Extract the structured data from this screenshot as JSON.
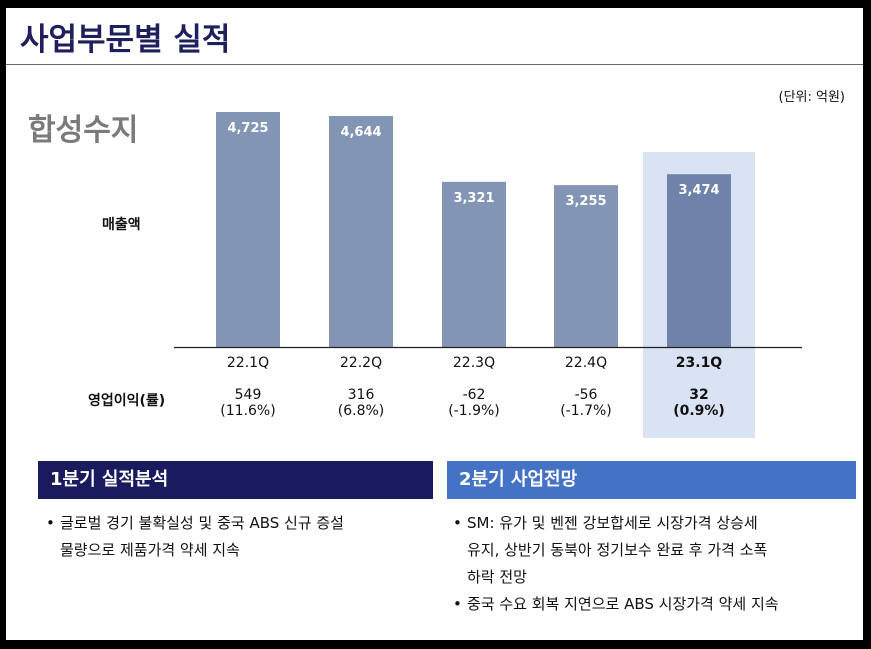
{
  "page": {
    "title": "사업부문별 실적",
    "unit": "(단위: 억원)",
    "segment": "합성수지"
  },
  "labels": {
    "revenue": "매출액",
    "operating_profit": "영업이익(률)"
  },
  "colors": {
    "bar": "#8395b5",
    "bar_highlight": "#6f82aa",
    "highlight_bg": "#dae3f3",
    "header_left": "#1a1a5e",
    "header_right": "#4472c4",
    "title": "#1f1f5c"
  },
  "chart_data": {
    "type": "bar",
    "categories": [
      "22.1Q",
      "22.2Q",
      "22.3Q",
      "22.4Q",
      "23.1Q"
    ],
    "values": [
      4725,
      4644,
      3321,
      3255,
      3474
    ],
    "value_labels": [
      "4,725",
      "4,644",
      "3,321",
      "3,255",
      "3,474"
    ],
    "highlight_index": 4,
    "series": [
      {
        "values": [
          4725,
          4644,
          3321,
          3255,
          3474
        ]
      }
    ],
    "operating_profit": [
      {
        "value": "549",
        "margin": "(11.6%)"
      },
      {
        "value": "316",
        "margin": "(6.8%)"
      },
      {
        "value": "-62",
        "margin": "(-1.9%)"
      },
      {
        "value": "-56",
        "margin": "(-1.7%)"
      },
      {
        "value": "32",
        "margin": "(0.9%)"
      }
    ]
  },
  "q1_review": {
    "header": "1분기 실적분석",
    "bullets": [
      {
        "line1": "글로벌 경기 불확실성 및 중국 ABS 신규 증설",
        "line2": "물량으로 제품가격 약세 지속"
      }
    ]
  },
  "q2_outlook": {
    "header": "2분기 사업전망",
    "bullets": [
      {
        "line1": "SM: 유가 및 벤젠 강보합세로 시장가격 상승세",
        "line2": "유지, 상반기 동북아 정기보수 완료 후 가격 소폭",
        "line3": "하락 전망"
      },
      {
        "line1": "중국 수요 회복 지연으로 ABS 시장가격 약세 지속"
      }
    ]
  }
}
